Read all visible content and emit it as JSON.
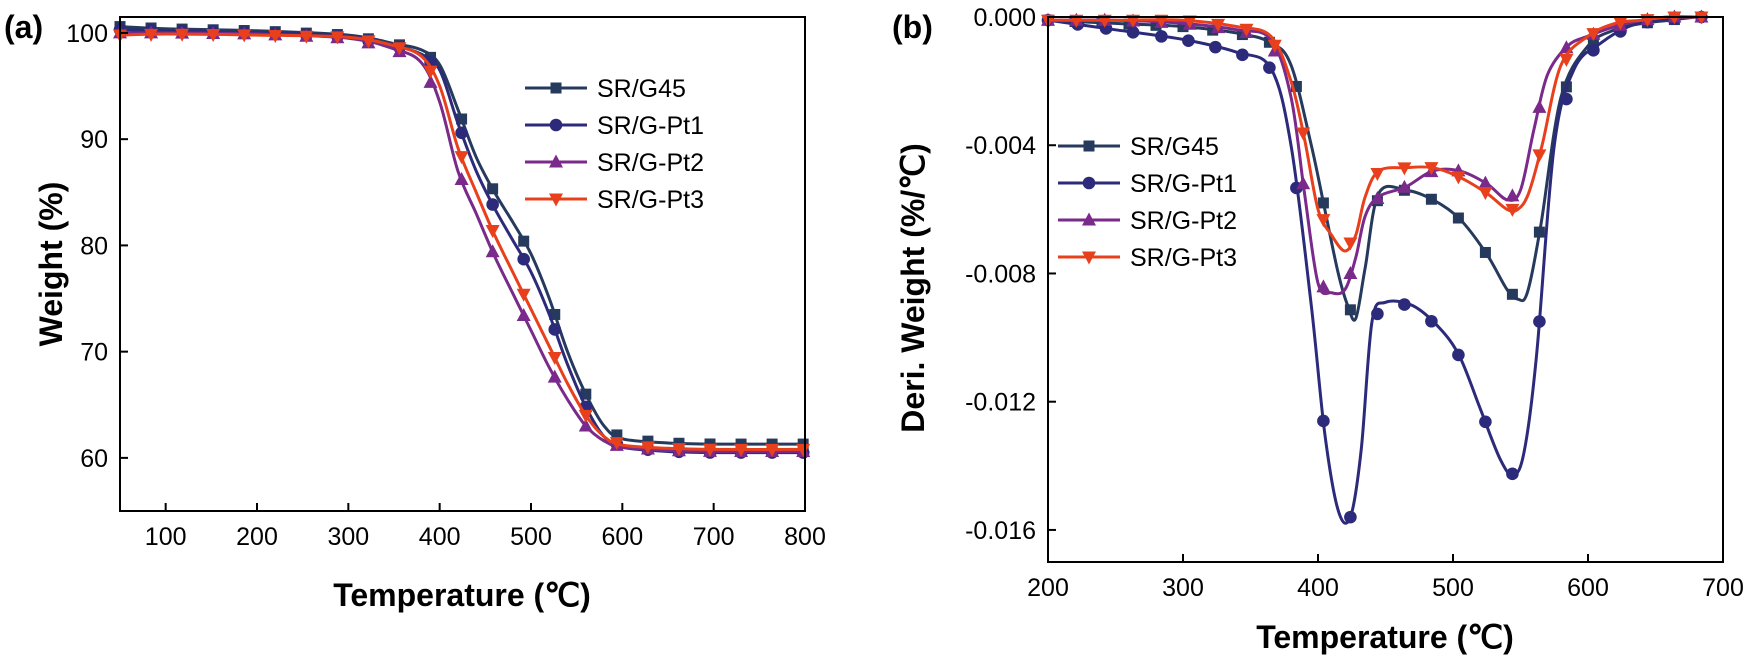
{
  "chart_data": [
    {
      "type": "line",
      "panel_label": "(a)",
      "xlabel": "Temperature (℃)",
      "ylabel": "Weight (%)",
      "xlim": [
        50,
        800
      ],
      "ylim": [
        55,
        101.5
      ],
      "xticks": [
        100,
        200,
        300,
        400,
        500,
        600,
        700,
        800
      ],
      "yticks": [
        60,
        70,
        80,
        90,
        100
      ],
      "legend_position": "upper-right",
      "grid": false,
      "series": [
        {
          "name": "SR/G45",
          "color": "#263a5e",
          "marker": "square",
          "x": [
            50,
            100,
            200,
            300,
            350,
            380,
            400,
            420,
            440,
            460,
            480,
            500,
            520,
            540,
            560,
            580,
            600,
            650,
            700,
            800
          ],
          "y": [
            100.6,
            100.4,
            100.2,
            99.8,
            99.0,
            98.4,
            97.0,
            92.8,
            88.3,
            85.0,
            82.2,
            79.2,
            75.0,
            70.0,
            66.0,
            63.0,
            61.8,
            61.4,
            61.3,
            61.3
          ],
          "markers_x": [
            50,
            84,
            118,
            152,
            186,
            220,
            254,
            288,
            322,
            356,
            390,
            424,
            458,
            492,
            526,
            560,
            594,
            628,
            662,
            696,
            730,
            764,
            798
          ]
        },
        {
          "name": "SR/G-Pt1",
          "color": "#2c2a7a",
          "marker": "circle",
          "x": [
            50,
            100,
            200,
            300,
            350,
            380,
            400,
            420,
            440,
            460,
            480,
            500,
            520,
            540,
            560,
            580,
            600,
            650,
            700,
            800
          ],
          "y": [
            100.3,
            100.2,
            100.0,
            99.7,
            98.8,
            98.0,
            96.5,
            91.5,
            87.0,
            83.5,
            80.5,
            77.5,
            73.5,
            68.8,
            64.8,
            62.0,
            61.0,
            60.6,
            60.5,
            60.5
          ],
          "markers_x": [
            50,
            84,
            118,
            152,
            186,
            220,
            254,
            288,
            322,
            356,
            390,
            424,
            458,
            492,
            526,
            560,
            594,
            628,
            662,
            696,
            730,
            764,
            798
          ]
        },
        {
          "name": "SR/G-Pt2",
          "color": "#7a2a8a",
          "marker": "triangle-up",
          "x": [
            50,
            100,
            200,
            300,
            350,
            380,
            400,
            420,
            440,
            460,
            480,
            500,
            520,
            540,
            560,
            580,
            600,
            650,
            700,
            800
          ],
          "y": [
            100.0,
            100.0,
            99.9,
            99.5,
            98.5,
            97.2,
            93.5,
            87.0,
            83.0,
            79.0,
            75.5,
            72.0,
            68.5,
            65.5,
            63.0,
            61.6,
            61.0,
            60.7,
            60.6,
            60.6
          ],
          "markers_x": [
            50,
            84,
            118,
            152,
            186,
            220,
            254,
            288,
            322,
            356,
            390,
            424,
            458,
            492,
            526,
            560,
            594,
            628,
            662,
            696,
            730,
            764,
            798
          ]
        },
        {
          "name": "SR/G-Pt3",
          "color": "#e8401c",
          "marker": "triangle-down",
          "x": [
            50,
            100,
            200,
            300,
            350,
            380,
            400,
            420,
            440,
            460,
            480,
            500,
            520,
            540,
            560,
            580,
            600,
            650,
            700,
            800
          ],
          "y": [
            99.8,
            99.9,
            99.8,
            99.6,
            98.8,
            97.8,
            95.0,
            89.2,
            85.0,
            81.0,
            77.5,
            74.0,
            70.5,
            67.0,
            64.0,
            62.0,
            61.2,
            60.9,
            60.8,
            60.8
          ],
          "markers_x": [
            50,
            84,
            118,
            152,
            186,
            220,
            254,
            288,
            322,
            356,
            390,
            424,
            458,
            492,
            526,
            560,
            594,
            628,
            662,
            696,
            730,
            764,
            798
          ]
        }
      ]
    },
    {
      "type": "line",
      "panel_label": "(b)",
      "xlabel": "Temperature (℃)",
      "ylabel": "Deri. Weight (%/℃)",
      "xlim": [
        200,
        700
      ],
      "ylim": [
        -0.017,
        0.0
      ],
      "xticks": [
        200,
        300,
        400,
        500,
        600,
        700
      ],
      "yticks": [
        0.0,
        -0.004,
        -0.008,
        -0.012,
        -0.016
      ],
      "ytick_labels": [
        "0.000",
        "-0.004",
        "-0.008",
        "-0.012",
        "-0.016"
      ],
      "legend_position": "upper-left",
      "grid": false,
      "series": [
        {
          "name": "SR/G45",
          "color": "#263a5e",
          "marker": "square",
          "x": [
            200,
            250,
            300,
            340,
            365,
            380,
            395,
            405,
            415,
            422,
            428,
            435,
            445,
            465,
            485,
            505,
            525,
            540,
            548,
            555,
            565,
            580,
            600,
            620,
            640,
            660,
            680
          ],
          "y": [
            -0.0001,
            -0.0002,
            -0.0003,
            -0.0005,
            -0.0008,
            -0.0015,
            -0.004,
            -0.006,
            -0.008,
            -0.009,
            -0.0094,
            -0.0078,
            -0.0055,
            -0.0054,
            -0.0057,
            -0.0063,
            -0.0074,
            -0.0085,
            -0.0088,
            -0.0086,
            -0.0065,
            -0.0025,
            -0.0009,
            -0.0004,
            -0.0002,
            -0.0001,
            0.0
          ],
          "markers_x": [
            200,
            220,
            240,
            260,
            280,
            300,
            322,
            344,
            364,
            384,
            404,
            424,
            444,
            464,
            484,
            504,
            524,
            544,
            564,
            584,
            604,
            624,
            644,
            664,
            684
          ]
        },
        {
          "name": "SR/G-Pt1",
          "color": "#2c2a7a",
          "marker": "circle",
          "x": [
            200,
            250,
            300,
            340,
            365,
            380,
            395,
            405,
            415,
            424,
            432,
            440,
            450,
            470,
            490,
            505,
            520,
            535,
            545,
            553,
            562,
            575,
            590,
            610,
            630,
            650,
            680
          ],
          "y": [
            -0.0001,
            -0.0004,
            -0.0007,
            -0.0011,
            -0.0016,
            -0.004,
            -0.009,
            -0.013,
            -0.0154,
            -0.0156,
            -0.0135,
            -0.0095,
            -0.0089,
            -0.009,
            -0.0097,
            -0.0106,
            -0.0122,
            -0.0138,
            -0.0143,
            -0.0135,
            -0.0105,
            -0.004,
            -0.0016,
            -0.0008,
            -0.0003,
            -0.0001,
            0.0
          ],
          "markers_x": [
            200,
            222,
            243,
            263,
            284,
            304,
            324,
            344,
            364,
            384,
            404,
            424,
            444,
            464,
            484,
            504,
            524,
            544,
            564,
            584,
            604,
            624,
            644,
            664,
            684
          ]
        },
        {
          "name": "SR/G-Pt2",
          "color": "#7a2a8a",
          "marker": "triangle-up",
          "x": [
            200,
            250,
            300,
            340,
            365,
            380,
            390,
            400,
            410,
            420,
            428,
            435,
            445,
            465,
            485,
            505,
            525,
            540,
            550,
            560,
            570,
            585,
            600,
            620,
            640,
            660,
            680
          ],
          "y": [
            -0.0001,
            -0.0001,
            -0.0002,
            -0.0004,
            -0.0007,
            -0.0025,
            -0.0055,
            -0.0083,
            -0.0086,
            -0.0085,
            -0.0075,
            -0.0062,
            -0.0056,
            -0.0053,
            -0.0048,
            -0.0048,
            -0.0052,
            -0.0057,
            -0.0054,
            -0.0035,
            -0.0018,
            -0.0009,
            -0.0006,
            -0.0003,
            -0.0001,
            0.0,
            0.0
          ],
          "markers_x": [
            200,
            221,
            242,
            263,
            284,
            305,
            326,
            347,
            368,
            389,
            404,
            424,
            444,
            464,
            484,
            504,
            524,
            544,
            564,
            584,
            604,
            624,
            644,
            664,
            684
          ]
        },
        {
          "name": "SR/G-Pt3",
          "color": "#e8401c",
          "marker": "triangle-down",
          "x": [
            200,
            250,
            300,
            340,
            365,
            380,
            390,
            400,
            410,
            420,
            428,
            435,
            445,
            465,
            485,
            505,
            525,
            540,
            548,
            556,
            566,
            580,
            600,
            620,
            640,
            660,
            680
          ],
          "y": [
            -0.0001,
            -0.0001,
            -0.0001,
            -0.0003,
            -0.0006,
            -0.002,
            -0.0038,
            -0.006,
            -0.0068,
            -0.0073,
            -0.0068,
            -0.0056,
            -0.0048,
            -0.0047,
            -0.0047,
            -0.005,
            -0.0055,
            -0.006,
            -0.006,
            -0.0055,
            -0.004,
            -0.0015,
            -0.0006,
            -0.0002,
            -0.0001,
            0.0,
            0.0
          ],
          "markers_x": [
            200,
            221,
            242,
            263,
            284,
            305,
            326,
            347,
            368,
            389,
            404,
            424,
            444,
            464,
            484,
            504,
            524,
            544,
            564,
            584,
            604,
            624,
            644,
            664,
            684
          ]
        }
      ]
    }
  ]
}
